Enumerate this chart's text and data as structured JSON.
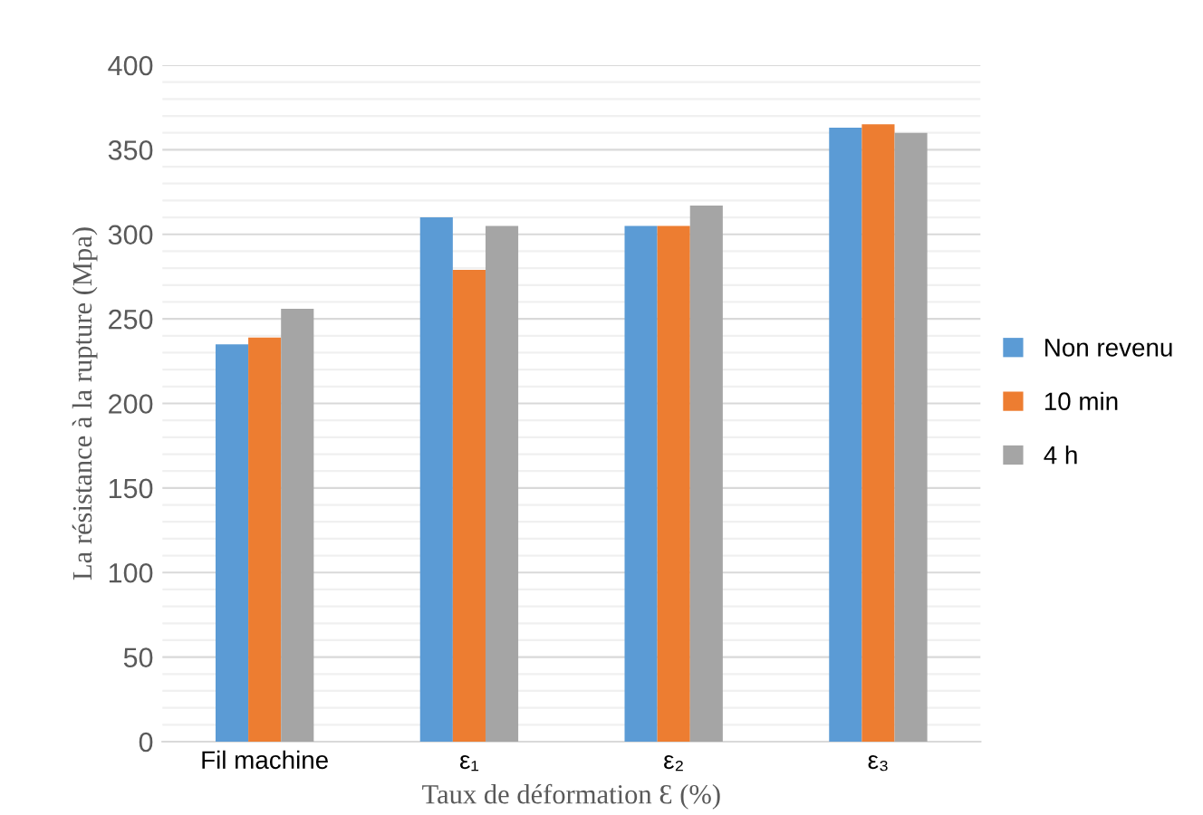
{
  "chart_data": {
    "type": "bar",
    "xlabel": "Taux de déformation Ɛ (%)",
    "ylabel": "La résistance à la rupture (Mpa)",
    "categories": [
      "Fil machine",
      "ε₁",
      "ε₂",
      "ε₃"
    ],
    "series": [
      {
        "name": "Non revenu",
        "color": "#5b9bd5",
        "values": [
          235,
          310,
          305,
          363
        ]
      },
      {
        "name": "10 min",
        "color": "#ed7d31",
        "values": [
          239,
          279,
          305,
          365
        ]
      },
      {
        "name": "4 h",
        "color": "#a5a5a5",
        "values": [
          256,
          305,
          317,
          360
        ]
      }
    ],
    "ylim": [
      0,
      400
    ],
    "yticks": [
      0,
      {
        "value": 10,
        "label": null
      },
      {
        "value": 20,
        "label": null
      },
      {
        "value": 30,
        "label": null
      },
      {
        "value": 40,
        "label": null
      },
      50,
      {
        "value": 60,
        "label": null
      },
      {
        "value": 70,
        "label": null
      },
      {
        "value": 80,
        "label": null
      },
      {
        "value": 90,
        "label": null
      },
      100,
      {
        "value": 110,
        "label": null
      },
      {
        "value": 120,
        "label": null
      },
      {
        "value": 130,
        "label": null
      },
      {
        "value": 140,
        "label": null
      },
      150,
      {
        "value": 160,
        "label": null
      },
      {
        "value": 170,
        "label": null
      },
      {
        "value": 180,
        "label": null
      },
      {
        "value": 190,
        "label": null
      },
      200,
      {
        "value": 210,
        "label": null
      },
      {
        "value": 220,
        "label": null
      },
      {
        "value": 230,
        "label": null
      },
      {
        "value": 240,
        "label": null
      },
      250,
      {
        "value": 260,
        "label": null
      },
      {
        "value": 270,
        "label": null
      },
      {
        "value": 280,
        "label": null
      },
      {
        "value": 290,
        "label": null
      },
      300,
      {
        "value": 310,
        "label": null
      },
      {
        "value": 320,
        "label": null
      },
      {
        "value": 330,
        "label": null
      },
      {
        "value": 340,
        "label": null
      },
      350,
      {
        "value": 360,
        "label": null
      },
      {
        "value": 370,
        "label": null
      },
      {
        "value": 380,
        "label": null
      },
      {
        "value": 390,
        "label": null
      },
      400
    ],
    "grid": "y",
    "legend": "right"
  }
}
